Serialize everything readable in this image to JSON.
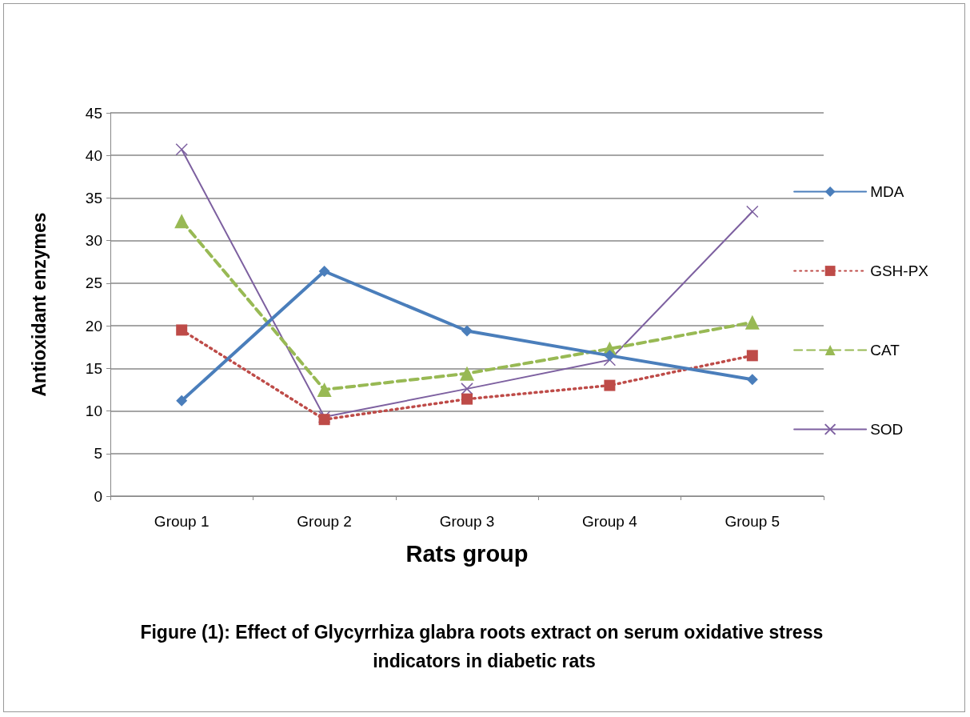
{
  "chart_data": {
    "type": "line",
    "title": "Figure (1): Effect of Glycyrrhiza glabra roots extract on serum oxidative stress indicators in diabetic rats",
    "xlabel": "Rats group",
    "ylabel": "Antioxidant enzymes",
    "categories": [
      "Group 1",
      "Group 2",
      "Group 3",
      "Group 4",
      "Group 5"
    ],
    "series": [
      {
        "name": "MDA",
        "color": "#4a7ebb",
        "marker": "diamond",
        "line_style": "solid",
        "values": [
          11.2,
          26.4,
          19.4,
          16.5,
          13.7
        ]
      },
      {
        "name": "GSH-PX",
        "color": "#be4b48",
        "marker": "square",
        "line_style": "dotted",
        "values": [
          19.5,
          9.0,
          11.4,
          13.0,
          16.5
        ]
      },
      {
        "name": "CAT",
        "color": "#98b954",
        "marker": "triangle",
        "line_style": "dashed",
        "values": [
          32.3,
          12.5,
          14.4,
          17.3,
          20.4
        ]
      },
      {
        "name": "SOD",
        "color": "#7d60a0",
        "marker": "cross",
        "line_style": "solid",
        "values": [
          40.7,
          9.3,
          12.6,
          16.0,
          33.4
        ]
      }
    ],
    "ylim": [
      0,
      45
    ],
    "yticks": [
      0,
      5,
      10,
      15,
      20,
      25,
      30,
      35,
      40,
      45
    ],
    "grid": "y",
    "legend": "right"
  }
}
